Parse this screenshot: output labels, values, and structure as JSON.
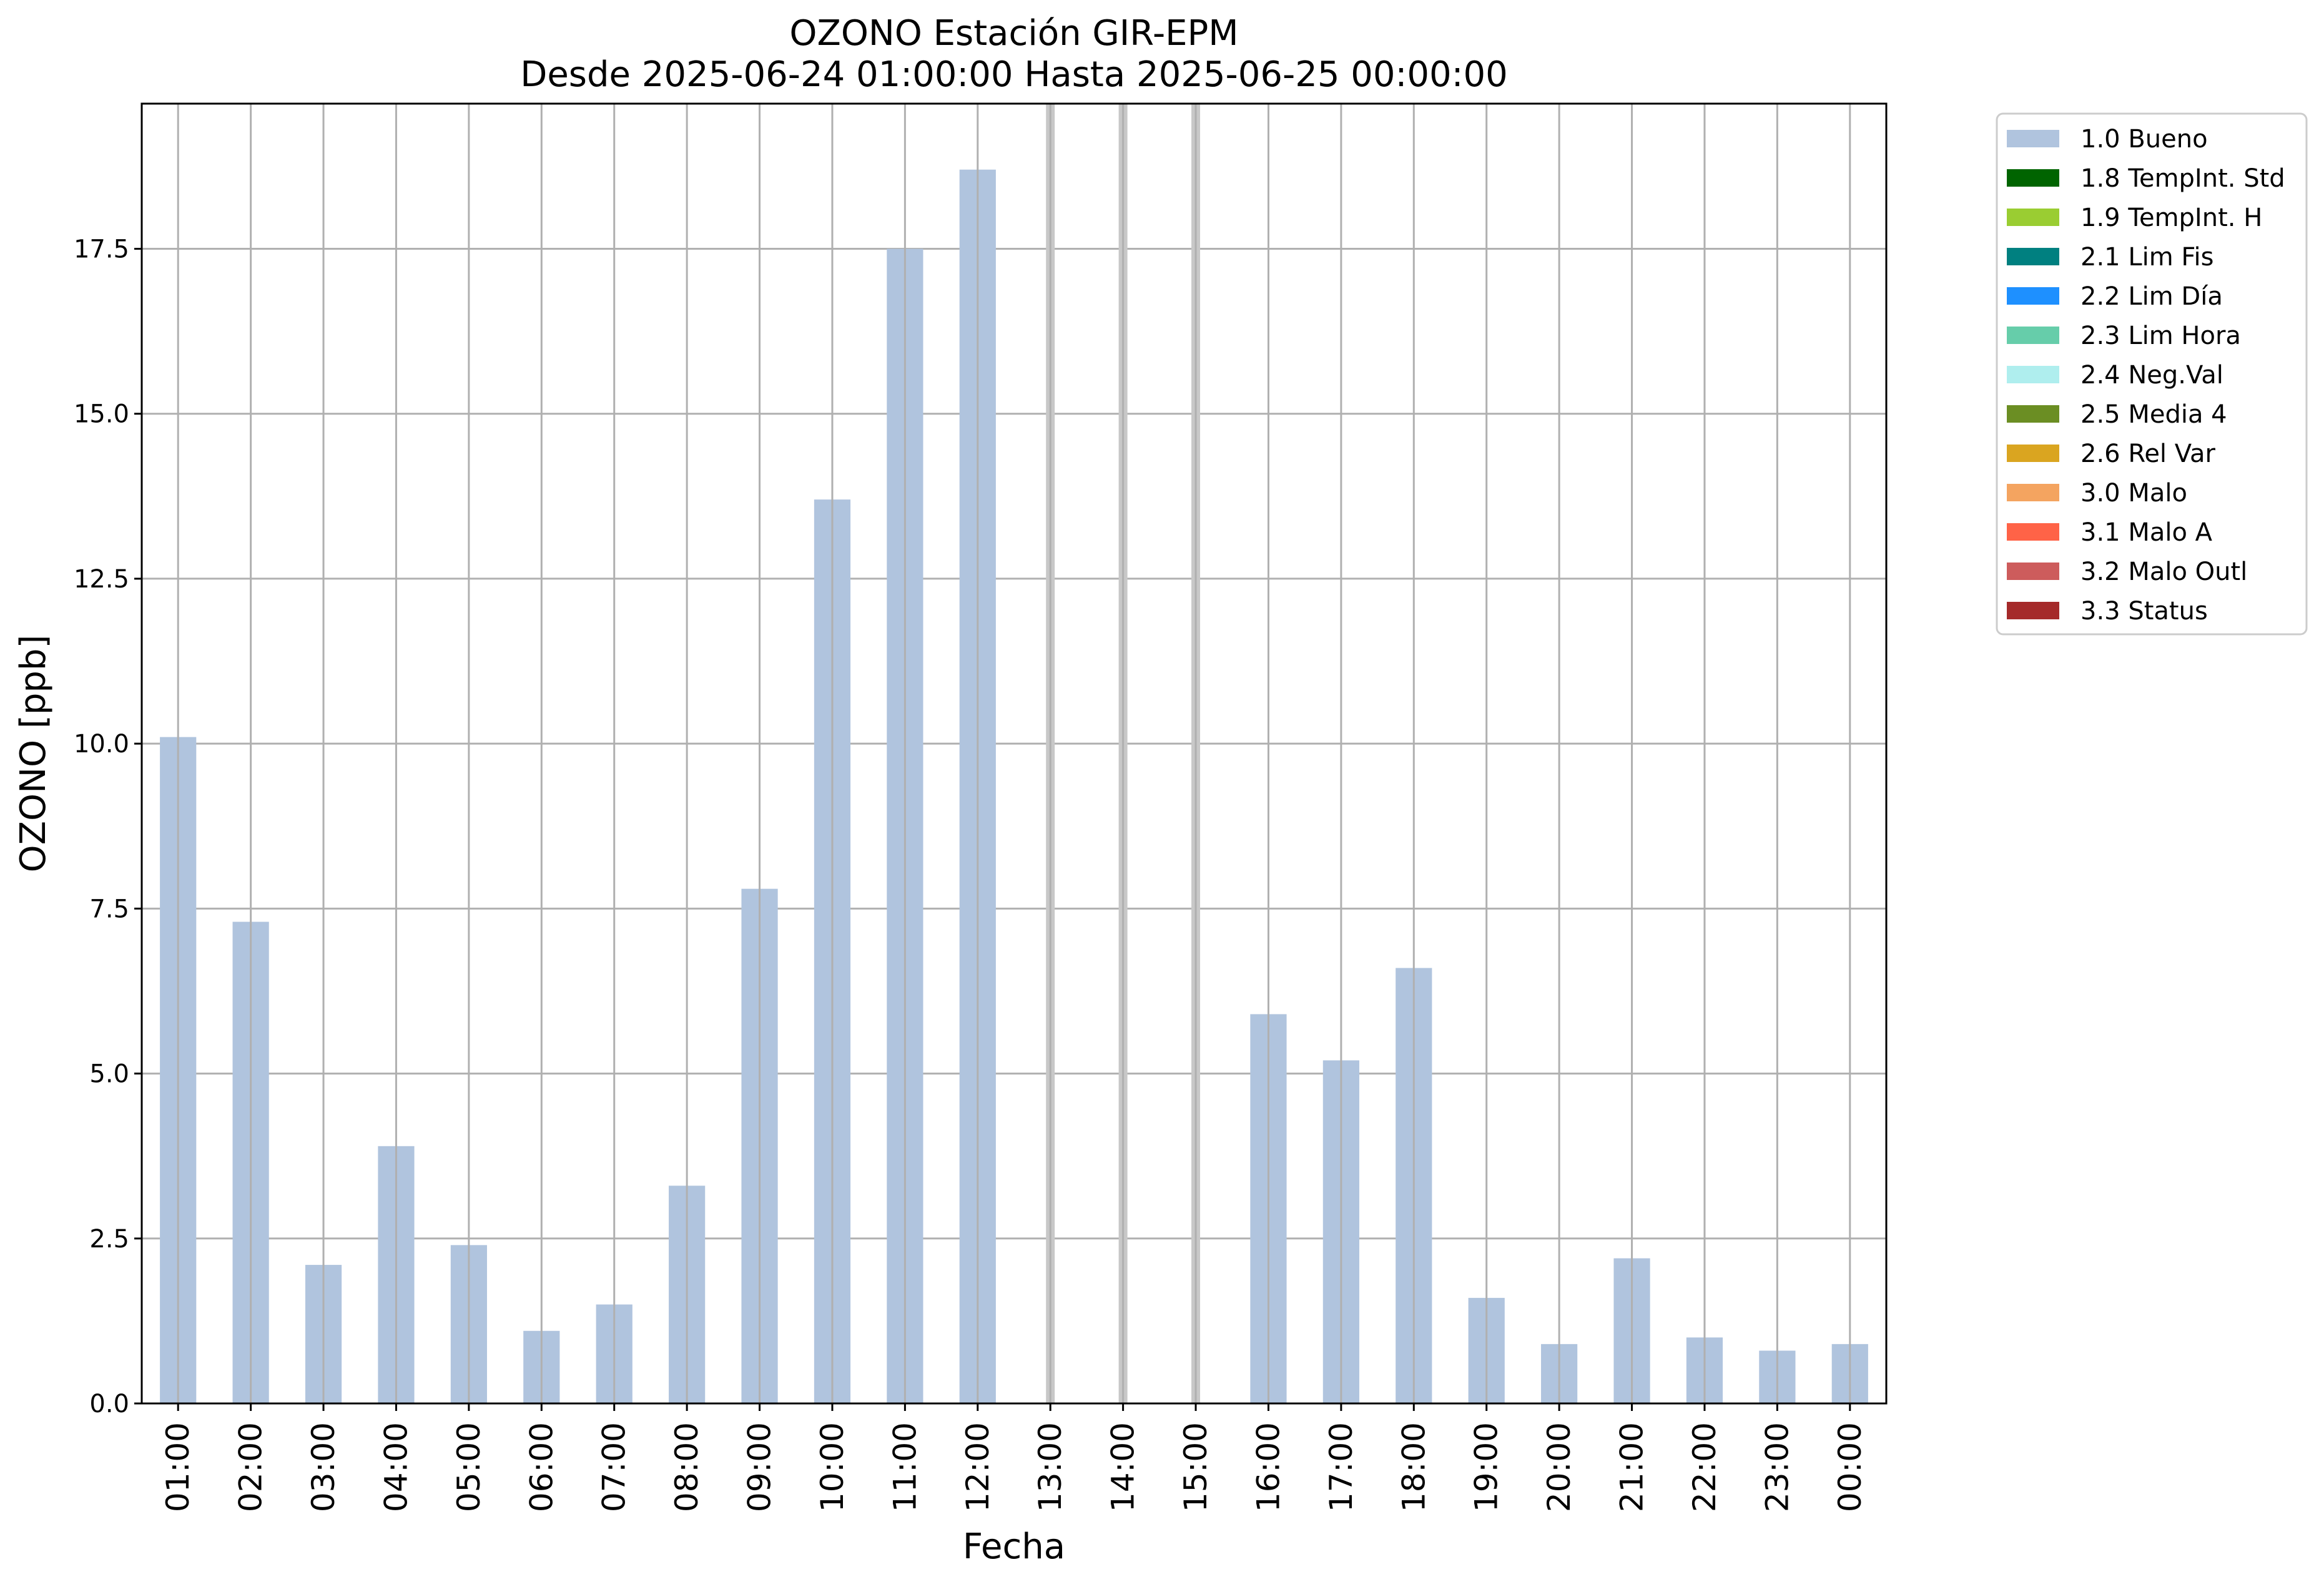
{
  "chart_data": {
    "type": "bar",
    "title": "OZONO Estación GIR-EPM",
    "subtitle": "Desde 2025-06-24 01:00:00 Hasta 2025-06-25 00:00:00",
    "xlabel": "Fecha",
    "ylabel": "OZONO [ppb]",
    "ylim": [
      0,
      19.7
    ],
    "yticks": [
      "0.0",
      "2.5",
      "5.0",
      "7.5",
      "10.0",
      "12.5",
      "15.0",
      "17.5"
    ],
    "grid": true,
    "legend_position": "outside-top-right",
    "categories": [
      "01:00",
      "02:00",
      "03:00",
      "04:00",
      "05:00",
      "06:00",
      "07:00",
      "08:00",
      "09:00",
      "10:00",
      "11:00",
      "12:00",
      "13:00",
      "14:00",
      "15:00",
      "16:00",
      "17:00",
      "18:00",
      "19:00",
      "20:00",
      "21:00",
      "22:00",
      "23:00",
      "00:00"
    ],
    "series": [
      {
        "name": "1.0 Bueno",
        "color": "#b0c4de",
        "values": [
          10.1,
          7.3,
          2.1,
          3.9,
          2.4,
          1.1,
          1.5,
          3.3,
          7.8,
          13.7,
          17.5,
          18.7,
          null,
          null,
          null,
          5.9,
          5.2,
          6.6,
          1.6,
          0.9,
          2.2,
          1.0,
          0.8,
          0.9
        ]
      }
    ],
    "missing_markers": [
      "13:00",
      "14:00",
      "15:00"
    ],
    "legend": [
      {
        "label": "1.0 Bueno",
        "color": "#b0c4de"
      },
      {
        "label": "1.8 TempInt. Std",
        "color": "#006400"
      },
      {
        "label": "1.9 TempInt. H",
        "color": "#9acd32"
      },
      {
        "label": "2.1 Lim Fis",
        "color": "#008080"
      },
      {
        "label": "2.2 Lim Día",
        "color": "#1e90ff"
      },
      {
        "label": "2.3 Lim Hora",
        "color": "#66cdaa"
      },
      {
        "label": "2.4 Neg.Val",
        "color": "#afeeee"
      },
      {
        "label": "2.5 Media 4",
        "color": "#6b8e23"
      },
      {
        "label": "2.6 Rel Var",
        "color": "#daa520"
      },
      {
        "label": "3.0 Malo",
        "color": "#f4a460"
      },
      {
        "label": "3.1 Malo A",
        "color": "#ff6347"
      },
      {
        "label": "3.2 Malo Outl",
        "color": "#cd5c5c"
      },
      {
        "label": "3.3 Status",
        "color": "#a52a2a"
      }
    ]
  }
}
